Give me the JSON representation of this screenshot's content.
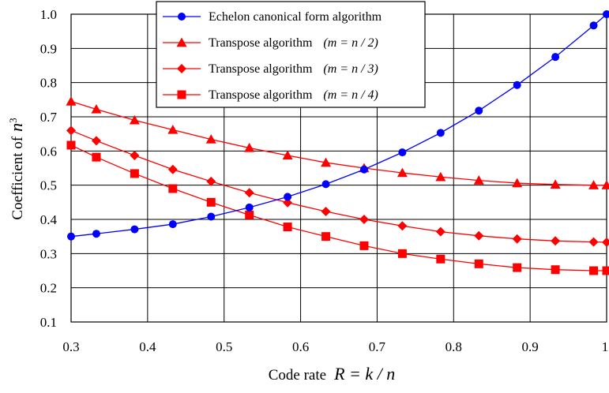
{
  "chart_data": {
    "type": "line",
    "title": "",
    "xlabel": "Code rate",
    "xlabel_math": "R = k / n",
    "ylabel": "Coefficient of",
    "ylabel_math": "n",
    "ylabel_sup": "3",
    "xlim": [
      0.3,
      1.0
    ],
    "ylim": [
      0.1,
      1.0
    ],
    "x_ticks": [
      "0.3",
      "0.4",
      "0.5",
      "0.6",
      "0.7",
      "0.8",
      "0.9",
      "1"
    ],
    "y_ticks": [
      "0.1",
      "0.2",
      "0.3",
      "0.4",
      "0.5",
      "0.6",
      "0.7",
      "0.8",
      "0.9",
      "1.0"
    ],
    "grid": true,
    "legend_position": "top-center",
    "x": [
      0.3,
      0.333,
      0.383,
      0.433,
      0.483,
      0.533,
      0.583,
      0.633,
      0.683,
      0.733,
      0.783,
      0.833,
      0.883,
      0.933,
      0.983,
      1.0
    ],
    "series": [
      {
        "name": "Echelon canonical form algorithm",
        "math": "",
        "marker": "circle",
        "color": "#0000ff",
        "values": [
          0.35,
          0.358,
          0.371,
          0.386,
          0.408,
          0.435,
          0.466,
          0.503,
          0.546,
          0.596,
          0.653,
          0.718,
          0.793,
          0.875,
          0.967,
          1.0
        ]
      },
      {
        "name": "Transpose algorithm",
        "math": "(m = n / 2)",
        "marker": "triangle",
        "color": "#ff0000",
        "values": [
          0.745,
          0.722,
          0.69,
          0.662,
          0.634,
          0.609,
          0.587,
          0.566,
          0.55,
          0.536,
          0.524,
          0.514,
          0.506,
          0.502,
          0.5,
          0.5
        ]
      },
      {
        "name": "Transpose algorithm",
        "math": "(m = n / 3)",
        "marker": "diamond",
        "color": "#ff0000",
        "values": [
          0.66,
          0.63,
          0.587,
          0.546,
          0.511,
          0.478,
          0.449,
          0.423,
          0.4,
          0.381,
          0.364,
          0.352,
          0.343,
          0.337,
          0.334,
          0.333
        ]
      },
      {
        "name": "Transpose algorithm",
        "math": "(m = n / 4)",
        "marker": "square",
        "color": "#ff0000",
        "values": [
          0.617,
          0.582,
          0.534,
          0.49,
          0.45,
          0.413,
          0.378,
          0.35,
          0.323,
          0.3,
          0.284,
          0.27,
          0.259,
          0.253,
          0.25,
          0.25
        ]
      }
    ]
  }
}
